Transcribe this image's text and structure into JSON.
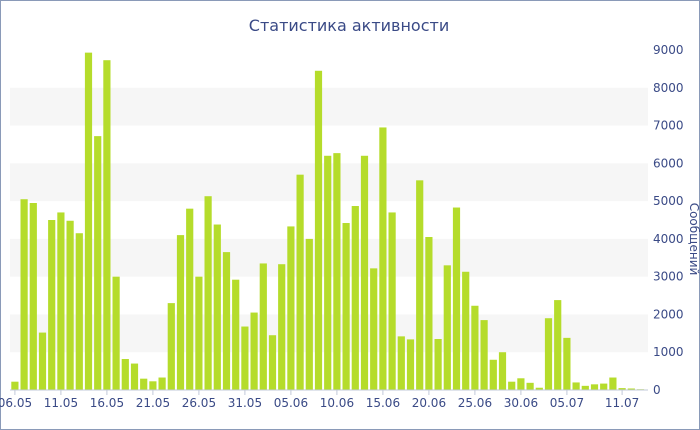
{
  "chart_data": {
    "type": "bar",
    "title": "Статистика активности",
    "ylabel": "Сообщений",
    "ylim": [
      0,
      9000
    ],
    "y_ticks": [
      0,
      1000,
      2000,
      3000,
      4000,
      5000,
      6000,
      7000,
      8000,
      9000
    ],
    "x_tick_labels": [
      "06.05",
      "11.05",
      "16.05",
      "21.05",
      "26.05",
      "31.05",
      "05.06",
      "10.06",
      "15.06",
      "20.06",
      "25.06",
      "30.06",
      "05.07",
      "11.07"
    ],
    "bar_color": "#b5dc2b",
    "values": [
      220,
      5050,
      4950,
      1520,
      4500,
      4700,
      4480,
      4150,
      8930,
      6720,
      8730,
      3000,
      820,
      700,
      300,
      230,
      330,
      2300,
      4100,
      4800,
      3000,
      5130,
      4380,
      3650,
      2920,
      1680,
      2050,
      3350,
      1450,
      3330,
      4330,
      5700,
      4000,
      8450,
      6200,
      6270,
      4420,
      4870,
      6200,
      3220,
      6950,
      4700,
      1420,
      1340,
      5550,
      4050,
      1350,
      3300,
      4830,
      3130,
      2230,
      1850,
      800,
      1000,
      220,
      310,
      190,
      60,
      1900,
      2380,
      1380,
      200,
      110,
      150,
      170,
      330,
      50,
      40,
      20
    ]
  }
}
